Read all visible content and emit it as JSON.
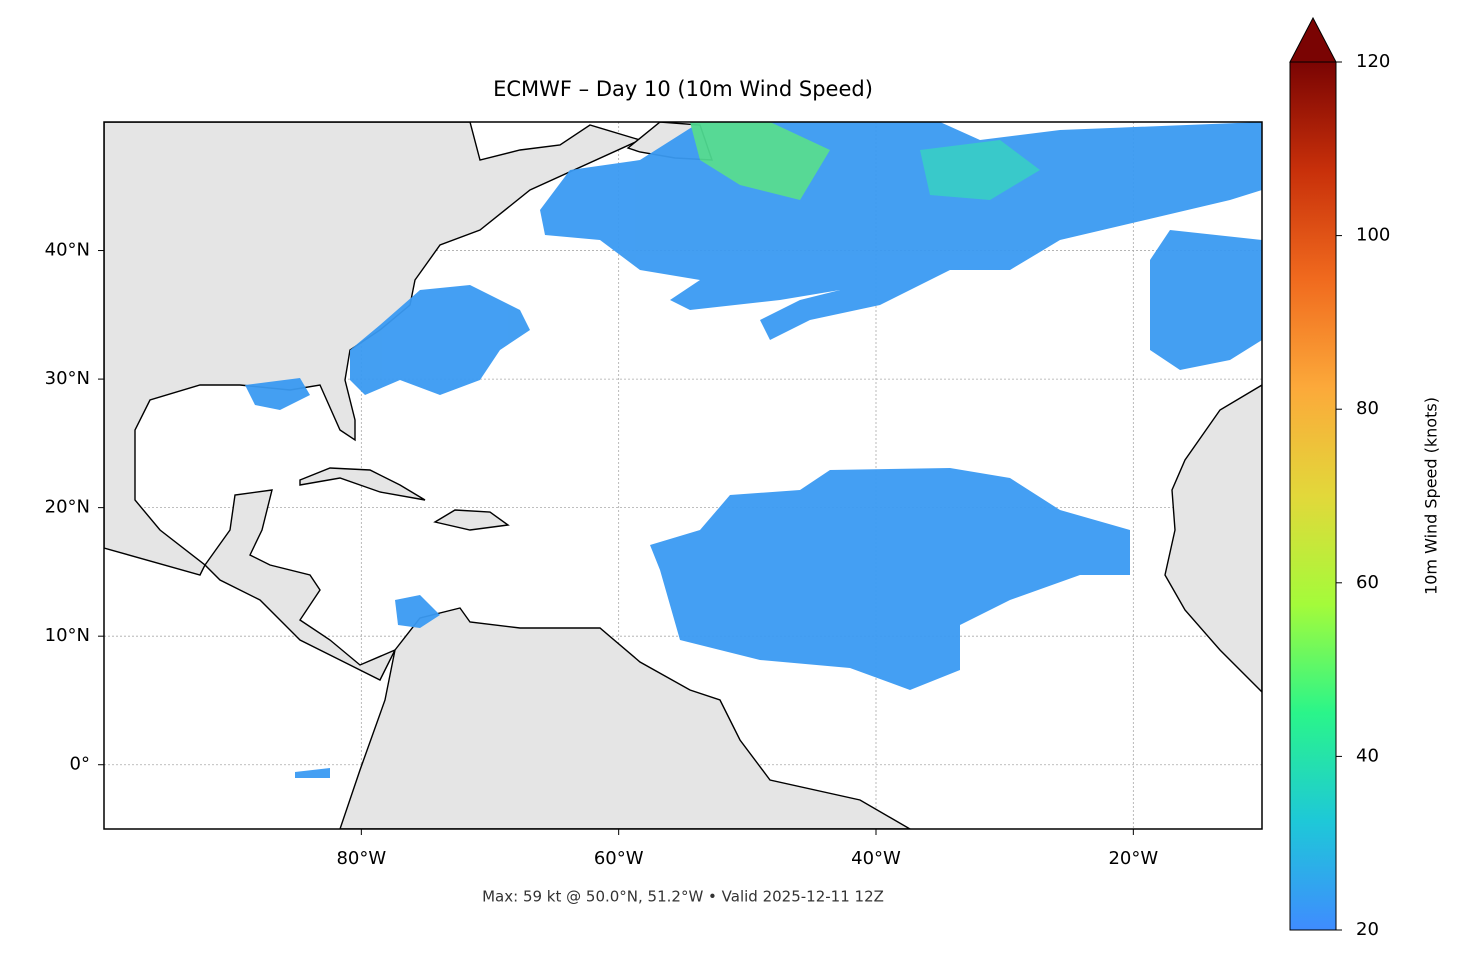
{
  "chart_data": {
    "type": "map",
    "title": "ECMWF – Day 10 (10m Wind Speed)",
    "subtitle": "Max: 59 kt @ 50.0°N, 51.2°W • Valid 2025-12-11 12Z",
    "xlim": [
      -100,
      -10
    ],
    "ylim": [
      -5,
      50
    ],
    "xticks": [
      {
        "value": -80,
        "label": "80°W"
      },
      {
        "value": -60,
        "label": "60°W"
      },
      {
        "value": -40,
        "label": "40°W"
      },
      {
        "value": -20,
        "label": "20°W"
      }
    ],
    "yticks": [
      {
        "value": 0,
        "label": "0°"
      },
      {
        "value": 10,
        "label": "10°N"
      },
      {
        "value": 20,
        "label": "20°N"
      },
      {
        "value": 30,
        "label": "30°N"
      },
      {
        "value": 40,
        "label": "40°N"
      }
    ],
    "grid": true,
    "colorbar": {
      "label": "10m Wind Speed (knots)",
      "lim": [
        20,
        120
      ],
      "ticks": [
        20,
        40,
        60,
        80,
        100,
        120
      ],
      "colors": [
        "#3f8cff",
        "#1ec8d8",
        "#2af58a",
        "#a4fb3a",
        "#e2d83a",
        "#fca93a",
        "#f06a1e",
        "#c8300a",
        "#7a0403"
      ]
    }
  }
}
